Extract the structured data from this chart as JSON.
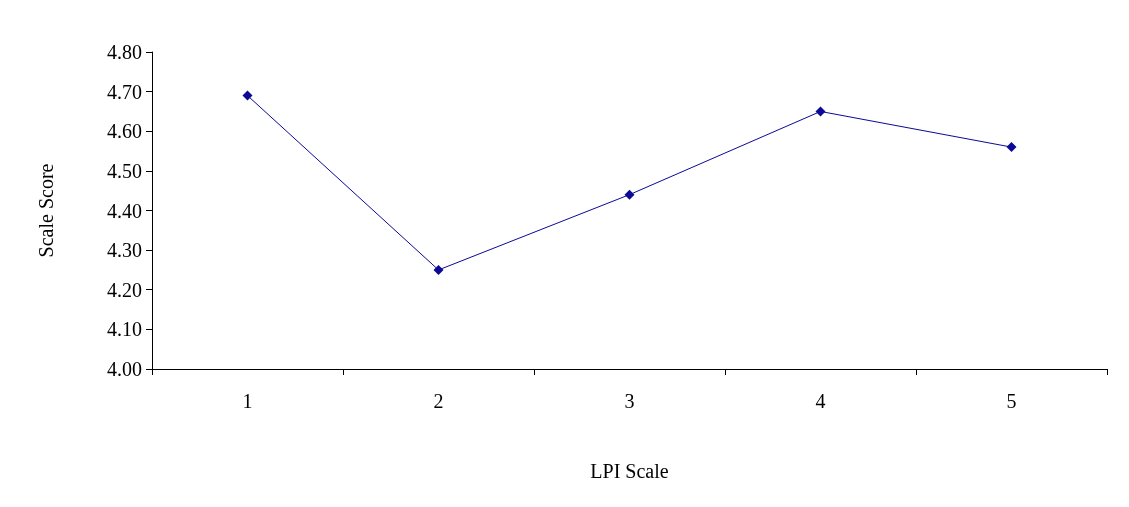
{
  "chart_data": {
    "type": "line",
    "xlabel": "LPI Scale",
    "ylabel": "Scale Score",
    "categories": [
      "1",
      "2",
      "3",
      "4",
      "5"
    ],
    "series": [
      {
        "color": "#0a0a96",
        "values": [
          4.69,
          4.25,
          4.44,
          4.65,
          4.56
        ]
      }
    ],
    "ylim": [
      4.0,
      4.8
    ],
    "yticks": [
      {
        "value": 4.0,
        "label": "4.00"
      },
      {
        "value": 4.1,
        "label": "4.10"
      },
      {
        "value": 4.2,
        "label": "4.20"
      },
      {
        "value": 4.3,
        "label": "4.30"
      },
      {
        "value": 4.4,
        "label": "4.40"
      },
      {
        "value": 4.5,
        "label": "4.50"
      },
      {
        "value": 4.6,
        "label": "4.60"
      },
      {
        "value": 4.7,
        "label": "4.70"
      },
      {
        "value": 4.8,
        "label": "4.80"
      }
    ],
    "grid": false,
    "marker": "diamond",
    "line_style": "solid"
  }
}
